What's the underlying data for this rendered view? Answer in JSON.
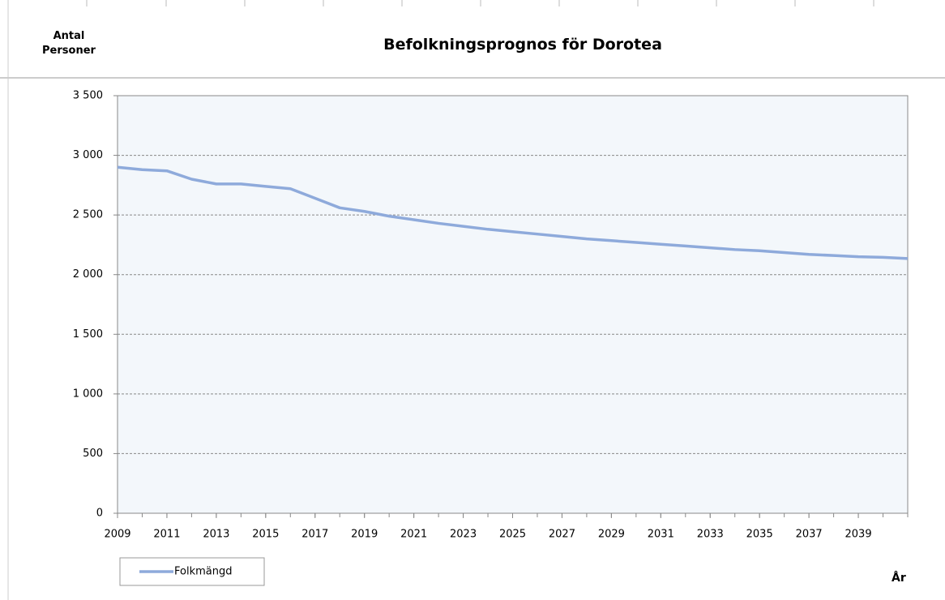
{
  "chart_data": {
    "type": "line",
    "title": "Befolkningsprognos för Dorotea",
    "y_label": "Antal Personer",
    "x_label": "År",
    "x": [
      2009,
      2010,
      2011,
      2012,
      2013,
      2014,
      2015,
      2016,
      2017,
      2018,
      2019,
      2020,
      2021,
      2022,
      2023,
      2024,
      2025,
      2026,
      2027,
      2028,
      2029,
      2030,
      2031,
      2032,
      2033,
      2034,
      2035,
      2036,
      2037,
      2038,
      2039,
      2040,
      2041
    ],
    "series": [
      {
        "name": "Folkmängd",
        "color": "#8eaadb",
        "values": [
          2900,
          2880,
          2870,
          2800,
          2760,
          2760,
          2740,
          2720,
          2640,
          2560,
          2530,
          2490,
          2460,
          2430,
          2405,
          2380,
          2360,
          2340,
          2320,
          2300,
          2285,
          2270,
          2255,
          2240,
          2225,
          2210,
          2200,
          2185,
          2170,
          2160,
          2150,
          2145,
          2135
        ]
      }
    ],
    "xlim": [
      2009,
      2041
    ],
    "xticks": [
      2009,
      2011,
      2013,
      2015,
      2017,
      2019,
      2021,
      2023,
      2025,
      2027,
      2029,
      2031,
      2033,
      2035,
      2037,
      2039
    ],
    "ylim": [
      0,
      3500
    ],
    "yticks": [
      0,
      500,
      {
        "value": 1000,
        "label": "1 000"
      },
      {
        "value": 1500,
        "label": "1 500"
      },
      {
        "value": 2000,
        "label": "2 000"
      },
      {
        "value": 2500,
        "label": "2 500"
      },
      {
        "value": 3000,
        "label": "3 000"
      },
      {
        "value": 3500,
        "label": "3 500"
      }
    ],
    "grid": true
  }
}
